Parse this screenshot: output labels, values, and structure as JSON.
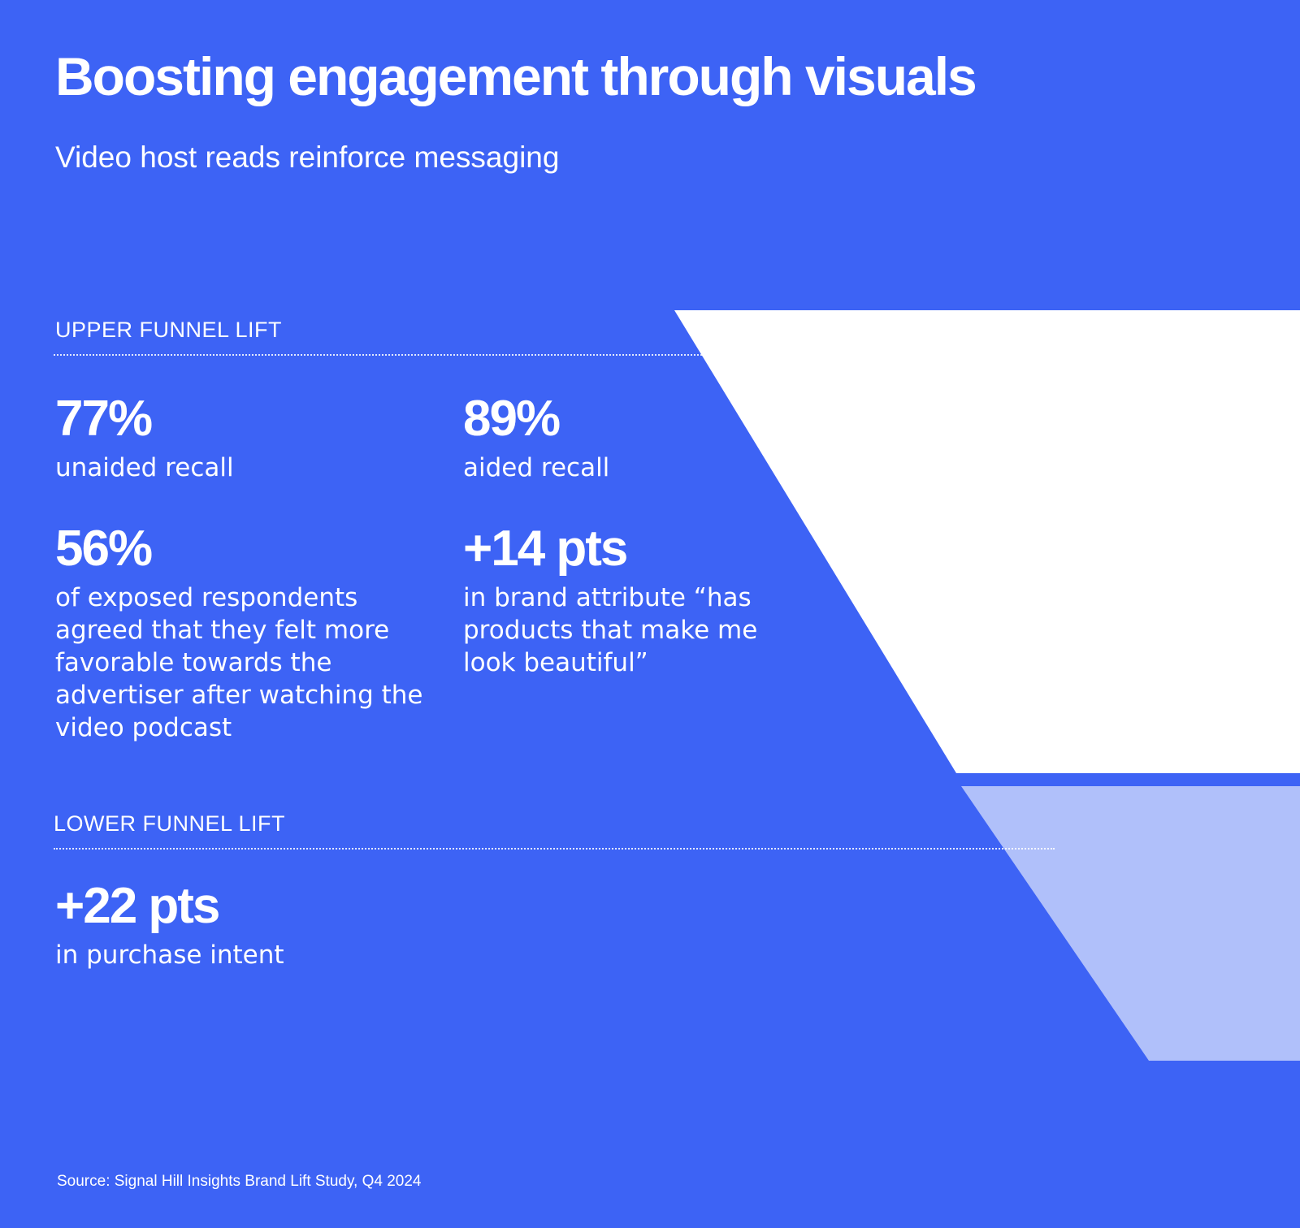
{
  "colors": {
    "background": "#3d63f5",
    "text": "#ffffff",
    "upper_funnel": "#ffffff",
    "lower_funnel": "#b0c0fa"
  },
  "title": "Boosting engagement through visuals",
  "subtitle": "Video host reads reinforce messaging",
  "upper": {
    "label": "UPPER FUNNEL LIFT",
    "stats": [
      {
        "value": "77%",
        "description": "unaided recall"
      },
      {
        "value": "89%",
        "description": "aided recall"
      },
      {
        "value": "56%",
        "description": "of exposed respondents agreed that they felt more favorable towards the advertiser after watching the video podcast"
      },
      {
        "value": "+14 pts",
        "description": "in brand attribute “has products that make me look beautiful”"
      }
    ]
  },
  "lower": {
    "label": "LOWER FUNNEL LIFT",
    "stats": [
      {
        "value": "+22 pts",
        "description": "in purchase intent"
      }
    ]
  },
  "source": "Source: Signal Hill Insights Brand Lift Study, Q4 2024"
}
